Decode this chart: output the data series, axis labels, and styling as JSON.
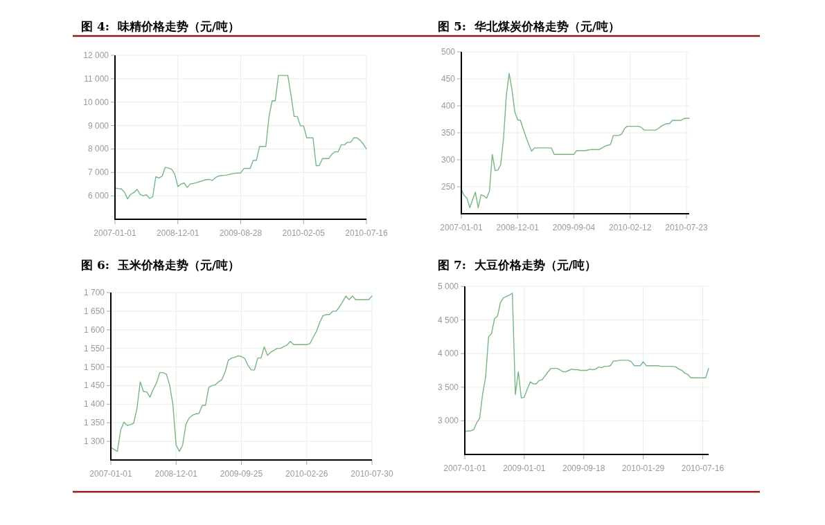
{
  "chart_data": [
    {
      "type": "line",
      "title": "图 4:  味精价格走势（元/吨）",
      "color": "#78b584",
      "grid": true,
      "ylim": [
        5000,
        12000
      ],
      "yticks": [
        {
          "value": 6000,
          "label": "6 000"
        },
        {
          "value": 7000,
          "label": "7 000"
        },
        {
          "value": 8000,
          "label": "8 000"
        },
        {
          "value": 9000,
          "label": "9 000"
        },
        {
          "value": 10000,
          "label": "10 000"
        },
        {
          "value": 11000,
          "label": "11 000"
        },
        {
          "value": 12000,
          "label": "12 000"
        }
      ],
      "categories": [
        "2007-01-01",
        null,
        null,
        null,
        null,
        null,
        null,
        null,
        null,
        null,
        null,
        null,
        null,
        null,
        null,
        null,
        null,
        null,
        null,
        null,
        "2008-12-01",
        null,
        null,
        null,
        null,
        null,
        null,
        null,
        null,
        null,
        null,
        null,
        null,
        null,
        null,
        null,
        null,
        null,
        null,
        null,
        "2009-08-28",
        null,
        null,
        null,
        null,
        null,
        null,
        null,
        null,
        null,
        null,
        null,
        null,
        null,
        null,
        null,
        null,
        null,
        null,
        null,
        "2010-02-05",
        null,
        null,
        null,
        null,
        null,
        null,
        null,
        null,
        null,
        null,
        null,
        null,
        null,
        null,
        null,
        null,
        null,
        null,
        null,
        "2010-07-16"
      ],
      "values": [
        6330,
        6310,
        6300,
        6160,
        5870,
        6070,
        6140,
        6280,
        6060,
        6000,
        6050,
        5890,
        5960,
        6820,
        6760,
        6840,
        7220,
        7190,
        7140,
        6930,
        6400,
        6500,
        6550,
        6360,
        6510,
        6530,
        6570,
        6610,
        6650,
        6690,
        6700,
        6660,
        6780,
        6850,
        6870,
        6880,
        6900,
        6940,
        6960,
        6970,
        6980,
        7170,
        7170,
        7170,
        7520,
        7520,
        8110,
        8110,
        8110,
        9390,
        10060,
        10060,
        11140,
        11140,
        11140,
        11140,
        10300,
        9390,
        9390,
        8990,
        8990,
        8480,
        8480,
        8480,
        7290,
        7290,
        7590,
        7590,
        7590,
        7780,
        7880,
        7880,
        8180,
        8180,
        8290,
        8290,
        8480,
        8480,
        8370,
        8210,
        8010
      ]
    },
    {
      "type": "line",
      "title": "图 5:  华北煤炭价格走势（元/吨）",
      "color": "#78b584",
      "grid": true,
      "ylim": [
        200,
        500
      ],
      "yticks": [
        250,
        300,
        350,
        400,
        450,
        500
      ],
      "categories": [
        "2007-01-01",
        null,
        null,
        null,
        null,
        null,
        null,
        null,
        null,
        null,
        null,
        null,
        null,
        null,
        null,
        null,
        null,
        null,
        null,
        null,
        "2008-12-01",
        null,
        null,
        null,
        null,
        null,
        null,
        null,
        null,
        null,
        null,
        null,
        null,
        null,
        null,
        null,
        null,
        null,
        null,
        null,
        "2009-09-04",
        null,
        null,
        null,
        null,
        null,
        null,
        null,
        null,
        null,
        null,
        null,
        null,
        null,
        null,
        null,
        null,
        null,
        null,
        null,
        "2010-02-12",
        null,
        null,
        null,
        null,
        null,
        null,
        null,
        null,
        null,
        null,
        null,
        null,
        null,
        null,
        null,
        null,
        null,
        null,
        null,
        "2010-07-23",
        null
      ],
      "values": [
        245,
        234,
        229,
        211,
        226,
        240,
        211,
        235,
        233,
        229,
        242,
        310,
        280,
        281,
        291,
        340,
        420,
        460,
        430,
        389,
        374,
        373,
        357,
        342,
        328,
        316,
        322,
        322,
        322,
        322,
        322,
        322,
        322,
        310,
        310,
        310,
        310,
        310,
        310,
        310,
        310,
        317,
        317,
        317,
        317,
        318,
        319,
        319,
        319,
        319,
        322,
        325,
        327,
        328,
        345,
        345,
        345,
        348,
        358,
        362,
        362,
        362,
        362,
        362,
        360,
        355,
        355,
        355,
        355,
        355,
        358,
        362,
        365,
        367,
        367,
        373,
        373,
        373,
        373,
        376,
        377,
        377
      ]
    },
    {
      "type": "line",
      "title": "图 6:  玉米价格走势（元/吨）",
      "color": "#78b584",
      "grid": true,
      "ylim": [
        1250,
        1700
      ],
      "yticks": [
        {
          "value": 1300,
          "label": "1 300"
        },
        {
          "value": 1350,
          "label": "1 350"
        },
        {
          "value": 1400,
          "label": "1 400"
        },
        {
          "value": 1450,
          "label": "1 450"
        },
        {
          "value": 1500,
          "label": "1 500"
        },
        {
          "value": 1550,
          "label": "1 550"
        },
        {
          "value": 1600,
          "label": "1 600"
        },
        {
          "value": 1650,
          "label": "1 650"
        },
        {
          "value": 1700,
          "label": "1 700"
        }
      ],
      "categories": [
        "2007-01-01",
        null,
        null,
        null,
        null,
        null,
        null,
        null,
        null,
        null,
        null,
        null,
        null,
        null,
        null,
        null,
        null,
        null,
        null,
        null,
        "2008-12-01",
        null,
        null,
        null,
        null,
        null,
        null,
        null,
        null,
        null,
        null,
        null,
        null,
        null,
        null,
        null,
        null,
        null,
        null,
        null,
        "2009-09-25",
        null,
        null,
        null,
        null,
        null,
        null,
        null,
        null,
        null,
        null,
        null,
        null,
        null,
        null,
        null,
        null,
        null,
        null,
        null,
        "2010-02-26",
        null,
        null,
        null,
        null,
        null,
        null,
        null,
        null,
        null,
        null,
        null,
        null,
        null,
        null,
        null,
        null,
        null,
        null,
        null,
        "2010-07-30"
      ],
      "values": [
        1284,
        1278,
        1273,
        1330,
        1352,
        1343,
        1345,
        1349,
        1388,
        1460,
        1434,
        1433,
        1419,
        1440,
        1457,
        1485,
        1485,
        1481,
        1452,
        1400,
        1290,
        1273,
        1290,
        1346,
        1363,
        1370,
        1374,
        1375,
        1397,
        1397,
        1445,
        1450,
        1452,
        1460,
        1466,
        1486,
        1518,
        1524,
        1526,
        1530,
        1528,
        1523,
        1505,
        1492,
        1492,
        1524,
        1524,
        1554,
        1531,
        1540,
        1545,
        1550,
        1550,
        1555,
        1559,
        1569,
        1560,
        1560,
        1560,
        1560,
        1560,
        1563,
        1580,
        1596,
        1620,
        1638,
        1641,
        1641,
        1650,
        1650,
        1661,
        1675,
        1691,
        1681,
        1691,
        1681,
        1681,
        1681,
        1681,
        1681,
        1691
      ]
    },
    {
      "type": "line",
      "title": "图 7:  大豆价格走势（元/吨）",
      "color": "#78b584",
      "grid": true,
      "ylim": [
        2500,
        5000
      ],
      "yticks": [
        {
          "value": 3000,
          "label": "3 000"
        },
        {
          "value": 3500,
          "label": "3 500"
        },
        {
          "value": 4000,
          "label": "4 000"
        },
        {
          "value": 4500,
          "label": "4 500"
        },
        {
          "value": 5000,
          "label": "5 000"
        }
      ],
      "categories": [
        "2007-01-01",
        null,
        null,
        null,
        null,
        null,
        null,
        null,
        null,
        null,
        null,
        null,
        null,
        null,
        null,
        null,
        null,
        null,
        null,
        null,
        "2009-01-01",
        null,
        null,
        null,
        null,
        null,
        null,
        null,
        null,
        null,
        null,
        null,
        null,
        null,
        null,
        null,
        null,
        null,
        null,
        null,
        "2009-09-18",
        null,
        null,
        null,
        null,
        null,
        null,
        null,
        null,
        null,
        null,
        null,
        null,
        null,
        null,
        null,
        null,
        null,
        null,
        null,
        "2010-01-29",
        null,
        null,
        null,
        null,
        null,
        null,
        null,
        null,
        null,
        null,
        null,
        null,
        null,
        null,
        null,
        null,
        null,
        null,
        null,
        "2010-07-16",
        null,
        null
      ],
      "values": [
        2840,
        2850,
        2850,
        2870,
        2970,
        3040,
        3400,
        3650,
        4250,
        4300,
        4520,
        4560,
        4760,
        4830,
        4850,
        4870,
        4900,
        3390,
        3730,
        3340,
        3350,
        3470,
        3580,
        3550,
        3550,
        3600,
        3610,
        3670,
        3730,
        3780,
        3780,
        3780,
        3760,
        3730,
        3730,
        3750,
        3770,
        3760,
        3760,
        3750,
        3750,
        3750,
        3770,
        3760,
        3770,
        3800,
        3790,
        3810,
        3810,
        3820,
        3890,
        3890,
        3900,
        3900,
        3900,
        3900,
        3880,
        3820,
        3820,
        3820,
        3880,
        3820,
        3820,
        3820,
        3820,
        3820,
        3810,
        3810,
        3810,
        3810,
        3810,
        3800,
        3770,
        3750,
        3710,
        3690,
        3640,
        3640,
        3640,
        3640,
        3640,
        3640,
        3780
      ]
    }
  ]
}
